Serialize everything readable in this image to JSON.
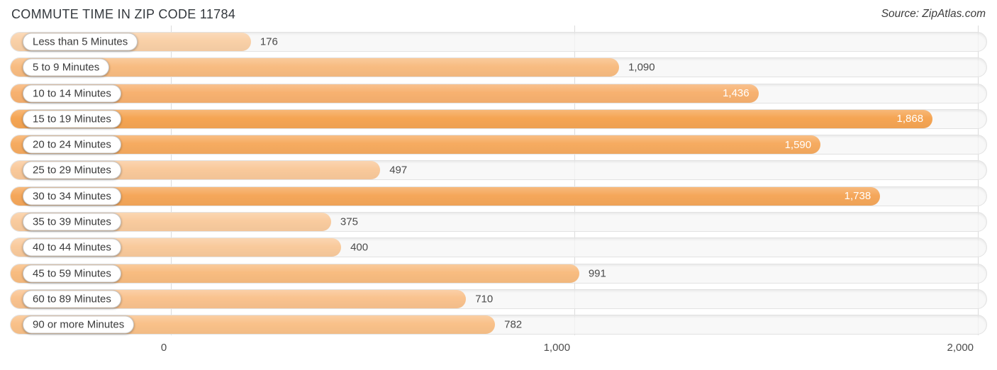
{
  "header": {
    "title": "COMMUTE TIME IN ZIP CODE 11784",
    "source": "Source: ZipAtlas.com"
  },
  "chart_data": {
    "type": "bar",
    "orientation": "horizontal",
    "title": "COMMUTE TIME IN ZIP CODE 11784",
    "source": "Source: ZipAtlas.com",
    "categories": [
      "Less than 5 Minutes",
      "5 to 9 Minutes",
      "10 to 14 Minutes",
      "15 to 19 Minutes",
      "20 to 24 Minutes",
      "25 to 29 Minutes",
      "30 to 34 Minutes",
      "35 to 39 Minutes",
      "40 to 44 Minutes",
      "45 to 59 Minutes",
      "60 to 89 Minutes",
      "90 or more Minutes"
    ],
    "values": [
      176,
      1090,
      1436,
      1868,
      1590,
      497,
      1738,
      375,
      400,
      991,
      710,
      782
    ],
    "value_labels": [
      "176",
      "1,090",
      "1,436",
      "1,868",
      "1,590",
      "497",
      "1,738",
      "375",
      "400",
      "991",
      "710",
      "782"
    ],
    "bar_colors": [
      "#f9d0a7",
      "#f8bc81",
      "#f7b170",
      "#f5a553",
      "#f6ab60",
      "#f9c99b",
      "#f5a75a",
      "#f9cb9e",
      "#f9ca9c",
      "#f8bc80",
      "#f9c28e",
      "#f9c189"
    ],
    "xlim": [
      0,
      2000
    ],
    "x_ticks": [
      {
        "label": "0",
        "value": 0
      },
      {
        "label": "1,000",
        "value": 1000
      },
      {
        "label": "2,000",
        "value": 2000
      }
    ],
    "grid": true,
    "legend": "none",
    "value_label_inside_color": "#ffffff",
    "value_label_outside_color": "#4b4b4b",
    "gridline_color": "#dcdcdc",
    "track_color": "#f6f6f6"
  }
}
